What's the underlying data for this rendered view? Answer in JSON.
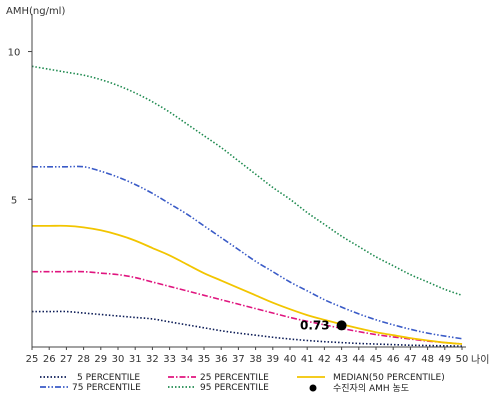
{
  "chart_data": {
    "type": "line",
    "ylabel": "AMH(ng/ml)",
    "xlabel": "나이",
    "x": [
      25,
      26,
      27,
      28,
      29,
      30,
      31,
      32,
      33,
      34,
      35,
      36,
      37,
      38,
      39,
      40,
      41,
      42,
      43,
      44,
      45,
      46,
      47,
      48,
      49,
      50
    ],
    "xlim": [
      25,
      50
    ],
    "ylim": [
      0,
      11
    ],
    "yticks": [
      5,
      10
    ],
    "grid": false,
    "legend_position": "bottom",
    "series": [
      {
        "name": "5 PERCENTILE",
        "color": "#0a1a55",
        "dash": "dotted",
        "values": [
          1.2,
          1.2,
          1.2,
          1.15,
          1.1,
          1.05,
          1.0,
          0.95,
          0.85,
          0.75,
          0.65,
          0.55,
          0.47,
          0.4,
          0.33,
          0.27,
          0.22,
          0.18,
          0.15,
          0.12,
          0.1,
          0.08,
          0.06,
          0.05,
          0.04,
          0.03
        ]
      },
      {
        "name": "25 PERCENTILE",
        "color": "#e0157f",
        "dash": "dashdot",
        "values": [
          2.55,
          2.55,
          2.55,
          2.55,
          2.5,
          2.45,
          2.35,
          2.2,
          2.05,
          1.9,
          1.75,
          1.6,
          1.45,
          1.3,
          1.15,
          1.0,
          0.87,
          0.75,
          0.63,
          0.52,
          0.42,
          0.34,
          0.27,
          0.2,
          0.15,
          0.1
        ]
      },
      {
        "name": "MEDIAN(50 PERCENTILE)",
        "color": "#f2c500",
        "dash": "solid",
        "values": [
          4.1,
          4.1,
          4.1,
          4.05,
          3.95,
          3.8,
          3.6,
          3.35,
          3.1,
          2.8,
          2.5,
          2.25,
          2.0,
          1.75,
          1.5,
          1.28,
          1.08,
          0.92,
          0.77,
          0.63,
          0.5,
          0.4,
          0.3,
          0.22,
          0.15,
          0.1
        ]
      },
      {
        "name": "75 PERCENTILE",
        "color": "#3a5bc7",
        "dash": "dashdotdot",
        "values": [
          6.1,
          6.1,
          6.1,
          6.1,
          5.95,
          5.75,
          5.5,
          5.2,
          4.85,
          4.5,
          4.1,
          3.7,
          3.3,
          2.9,
          2.55,
          2.2,
          1.9,
          1.6,
          1.35,
          1.12,
          0.92,
          0.75,
          0.6,
          0.47,
          0.37,
          0.28
        ]
      },
      {
        "name": "95 PERCENTILE",
        "color": "#1e8a4f",
        "dash": "dotted",
        "values": [
          9.5,
          9.4,
          9.3,
          9.2,
          9.05,
          8.85,
          8.6,
          8.3,
          7.95,
          7.55,
          7.15,
          6.75,
          6.3,
          5.85,
          5.4,
          5.0,
          4.55,
          4.15,
          3.75,
          3.4,
          3.05,
          2.75,
          2.45,
          2.2,
          1.95,
          1.75
        ]
      }
    ],
    "highlight_point": {
      "name": "수진자의 AMH 농도",
      "x": 43,
      "y": 0.73,
      "label": "0.73",
      "color": "#000000"
    }
  }
}
